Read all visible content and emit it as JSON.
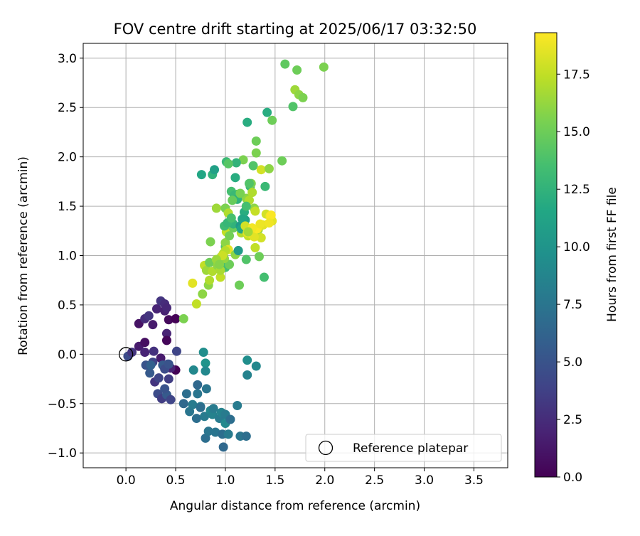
{
  "chart_data": {
    "type": "scatter",
    "title": "FOV centre drift starting at 2025/06/17 03:32:50",
    "xlabel": "Angular distance from reference (arcmin)",
    "ylabel": "Rotation from reference (arcmin)",
    "xlim": [
      -0.43,
      3.84
    ],
    "ylim": [
      -1.15,
      3.15
    ],
    "xticks": [
      0.0,
      0.5,
      1.0,
      1.5,
      2.0,
      2.5,
      3.0,
      3.5
    ],
    "yticks": [
      -1.0,
      -0.5,
      0.0,
      0.5,
      1.0,
      1.5,
      2.0,
      2.5,
      3.0
    ],
    "xtick_labels": [
      "0.0",
      "0.5",
      "1.0",
      "1.5",
      "2.0",
      "2.5",
      "3.0",
      "3.5"
    ],
    "ytick_labels": [
      "−1.0",
      "−0.5",
      "0.0",
      "0.5",
      "1.0",
      "1.5",
      "2.0",
      "2.5",
      "3.0"
    ],
    "grid": true,
    "legend": {
      "position": "lower-right",
      "entries": [
        "Reference platepar"
      ]
    },
    "colorbar": {
      "label": "Hours from first FF file",
      "colormap": "viridis",
      "range": [
        0.0,
        19.3
      ],
      "ticks": [
        0.0,
        2.5,
        5.0,
        7.5,
        10.0,
        12.5,
        15.0,
        17.5
      ],
      "tick_labels": [
        "0.0",
        "2.5",
        "5.0",
        "7.5",
        "10.0",
        "12.5",
        "15.0",
        "17.5"
      ]
    },
    "reference_point": {
      "x": 0.0,
      "y": 0.0,
      "label": "Reference platepar"
    },
    "points": [
      {
        "x": 0.02,
        "y": -0.02,
        "c": 4.5
      },
      {
        "x": 0.06,
        "y": 0.02,
        "c": 3.0
      },
      {
        "x": 0.13,
        "y": 0.08,
        "c": 1.5
      },
      {
        "x": 0.19,
        "y": 0.02,
        "c": 2.0
      },
      {
        "x": 0.19,
        "y": 0.12,
        "c": 0.8
      },
      {
        "x": 0.13,
        "y": 0.31,
        "c": 1.0
      },
      {
        "x": 0.19,
        "y": 0.36,
        "c": 2.5
      },
      {
        "x": 0.23,
        "y": 0.39,
        "c": 3.0
      },
      {
        "x": 0.27,
        "y": 0.3,
        "c": 1.5
      },
      {
        "x": 0.31,
        "y": 0.46,
        "c": 2.0
      },
      {
        "x": 0.35,
        "y": 0.54,
        "c": 3.0
      },
      {
        "x": 0.39,
        "y": 0.51,
        "c": 2.5
      },
      {
        "x": 0.39,
        "y": 0.44,
        "c": 1.8
      },
      {
        "x": 0.41,
        "y": 0.47,
        "c": 2.2
      },
      {
        "x": 0.43,
        "y": 0.35,
        "c": 0.5
      },
      {
        "x": 0.41,
        "y": 0.21,
        "c": 2.0
      },
      {
        "x": 0.41,
        "y": 0.14,
        "c": 0.3
      },
      {
        "x": 0.5,
        "y": 0.36,
        "c": 0.1
      },
      {
        "x": 0.58,
        "y": 0.36,
        "c": 15.5
      },
      {
        "x": 0.51,
        "y": 0.03,
        "c": 4.0
      },
      {
        "x": 0.5,
        "y": -0.16,
        "c": 0.1
      },
      {
        "x": 0.45,
        "y": -0.14,
        "c": 2.0
      },
      {
        "x": 0.42,
        "y": -0.1,
        "c": 4.5
      },
      {
        "x": 0.35,
        "y": -0.04,
        "c": 1.5
      },
      {
        "x": 0.28,
        "y": 0.03,
        "c": 2.8
      },
      {
        "x": 0.2,
        "y": -0.11,
        "c": 5.0
      },
      {
        "x": 0.24,
        "y": -0.19,
        "c": 5.5
      },
      {
        "x": 0.29,
        "y": -0.28,
        "c": 3.0
      },
      {
        "x": 0.33,
        "y": -0.24,
        "c": 4.0
      },
      {
        "x": 0.32,
        "y": -0.4,
        "c": 4.5
      },
      {
        "x": 0.36,
        "y": -0.45,
        "c": 3.5
      },
      {
        "x": 0.41,
        "y": -0.41,
        "c": 5.5
      },
      {
        "x": 0.45,
        "y": -0.46,
        "c": 4.0
      },
      {
        "x": 0.39,
        "y": -0.35,
        "c": 5.0
      },
      {
        "x": 0.37,
        "y": -0.11,
        "c": 5.5
      },
      {
        "x": 0.27,
        "y": -0.08,
        "c": 4.0
      },
      {
        "x": 0.25,
        "y": -0.11,
        "c": 6.0
      },
      {
        "x": 0.39,
        "y": -0.15,
        "c": 4.5
      },
      {
        "x": 0.43,
        "y": -0.1,
        "c": 5.0
      },
      {
        "x": 0.43,
        "y": -0.25,
        "c": 3.5
      },
      {
        "x": 0.58,
        "y": -0.5,
        "c": 6.5
      },
      {
        "x": 0.61,
        "y": -0.4,
        "c": 7.0
      },
      {
        "x": 0.64,
        "y": -0.58,
        "c": 7.5
      },
      {
        "x": 0.67,
        "y": -0.51,
        "c": 8.0
      },
      {
        "x": 0.68,
        "y": -0.16,
        "c": 9.0
      },
      {
        "x": 0.71,
        "y": -0.65,
        "c": 7.0
      },
      {
        "x": 0.72,
        "y": -0.4,
        "c": 7.5
      },
      {
        "x": 0.72,
        "y": -0.31,
        "c": 6.5
      },
      {
        "x": 0.75,
        "y": -0.53,
        "c": 8.0
      },
      {
        "x": 0.75,
        "y": -0.54,
        "c": 7.0
      },
      {
        "x": 0.78,
        "y": 0.02,
        "c": 9.5
      },
      {
        "x": 0.8,
        "y": -0.09,
        "c": 10.0
      },
      {
        "x": 0.8,
        "y": -0.17,
        "c": 9.0
      },
      {
        "x": 0.81,
        "y": -0.35,
        "c": 7.5
      },
      {
        "x": 0.79,
        "y": -0.63,
        "c": 8.0
      },
      {
        "x": 0.8,
        "y": -0.85,
        "c": 7.0
      },
      {
        "x": 0.83,
        "y": -0.78,
        "c": 7.5
      },
      {
        "x": 0.85,
        "y": -0.57,
        "c": 9.0
      },
      {
        "x": 0.87,
        "y": -0.61,
        "c": 8.5
      },
      {
        "x": 0.88,
        "y": -0.55,
        "c": 8.0
      },
      {
        "x": 0.9,
        "y": -0.79,
        "c": 7.5
      },
      {
        "x": 0.94,
        "y": -0.65,
        "c": 8.0
      },
      {
        "x": 0.96,
        "y": -0.59,
        "c": 8.5
      },
      {
        "x": 0.97,
        "y": -0.81,
        "c": 7.0
      },
      {
        "x": 0.98,
        "y": -0.94,
        "c": 6.5
      },
      {
        "x": 1.0,
        "y": -0.61,
        "c": 8.0
      },
      {
        "x": 1.0,
        "y": -0.7,
        "c": 9.0
      },
      {
        "x": 1.03,
        "y": -0.81,
        "c": 8.0
      },
      {
        "x": 1.05,
        "y": -0.66,
        "c": 7.0
      },
      {
        "x": 1.12,
        "y": -0.52,
        "c": 8.0
      },
      {
        "x": 1.15,
        "y": -0.83,
        "c": 7.5
      },
      {
        "x": 1.21,
        "y": -0.83,
        "c": 7.0
      },
      {
        "x": 1.22,
        "y": -0.21,
        "c": 8.5
      },
      {
        "x": 1.22,
        "y": -0.06,
        "c": 9.5
      },
      {
        "x": 1.31,
        "y": -0.12,
        "c": 9.0
      },
      {
        "x": 0.67,
        "y": 0.72,
        "c": 18.5
      },
      {
        "x": 0.71,
        "y": 0.51,
        "c": 17.5
      },
      {
        "x": 0.77,
        "y": 0.61,
        "c": 16.0
      },
      {
        "x": 0.79,
        "y": 0.9,
        "c": 17.5
      },
      {
        "x": 0.81,
        "y": 0.85,
        "c": 16.5
      },
      {
        "x": 0.83,
        "y": 0.7,
        "c": 16.0
      },
      {
        "x": 0.84,
        "y": 0.75,
        "c": 17.0
      },
      {
        "x": 0.84,
        "y": 0.93,
        "c": 15.0
      },
      {
        "x": 0.87,
        "y": 0.84,
        "c": 17.0
      },
      {
        "x": 0.85,
        "y": 1.14,
        "c": 15.5
      },
      {
        "x": 0.91,
        "y": 1.48,
        "c": 16.5
      },
      {
        "x": 0.92,
        "y": 0.9,
        "c": 16.0
      },
      {
        "x": 0.95,
        "y": 0.78,
        "c": 17.5
      },
      {
        "x": 0.96,
        "y": 0.99,
        "c": 16.0
      },
      {
        "x": 0.98,
        "y": 1.02,
        "c": 17.0
      },
      {
        "x": 1.0,
        "y": 1.09,
        "c": 14.0
      },
      {
        "x": 1.0,
        "y": 1.13,
        "c": 16.0
      },
      {
        "x": 1.01,
        "y": 1.24,
        "c": 17.5
      },
      {
        "x": 1.01,
        "y": 1.31,
        "c": 15.0
      },
      {
        "x": 1.0,
        "y": 1.48,
        "c": 15.5
      },
      {
        "x": 1.03,
        "y": 1.43,
        "c": 17.0
      },
      {
        "x": 1.03,
        "y": 1.06,
        "c": 18.5
      },
      {
        "x": 1.0,
        "y": 0.88,
        "c": 13.5
      },
      {
        "x": 1.04,
        "y": 0.91,
        "c": 15.0
      },
      {
        "x": 1.06,
        "y": 1.65,
        "c": 13.5
      },
      {
        "x": 1.08,
        "y": 1.28,
        "c": 15.0
      },
      {
        "x": 1.08,
        "y": 1.32,
        "c": 12.5
      },
      {
        "x": 1.1,
        "y": 1.79,
        "c": 12.0
      },
      {
        "x": 1.1,
        "y": 1.01,
        "c": 16.0
      },
      {
        "x": 1.12,
        "y": 1.62,
        "c": 14.0
      },
      {
        "x": 1.13,
        "y": 1.05,
        "c": 15.5
      },
      {
        "x": 1.14,
        "y": 0.7,
        "c": 15.0
      },
      {
        "x": 1.16,
        "y": 1.23,
        "c": 17.0
      },
      {
        "x": 1.18,
        "y": 1.37,
        "c": 14.5
      },
      {
        "x": 1.18,
        "y": 1.97,
        "c": 15.5
      },
      {
        "x": 1.21,
        "y": 0.96,
        "c": 14.0
      },
      {
        "x": 1.21,
        "y": 1.58,
        "c": 16.0
      },
      {
        "x": 1.22,
        "y": 2.35,
        "c": 12.0
      },
      {
        "x": 1.23,
        "y": 1.2,
        "c": 17.5
      },
      {
        "x": 1.24,
        "y": 1.56,
        "c": 17.0
      },
      {
        "x": 1.25,
        "y": 1.7,
        "c": 13.0
      },
      {
        "x": 1.26,
        "y": 1.73,
        "c": 15.5
      },
      {
        "x": 1.27,
        "y": 1.64,
        "c": 17.0
      },
      {
        "x": 1.28,
        "y": 1.91,
        "c": 14.0
      },
      {
        "x": 1.29,
        "y": 1.48,
        "c": 16.0
      },
      {
        "x": 1.3,
        "y": 1.08,
        "c": 17.5
      },
      {
        "x": 1.31,
        "y": 2.16,
        "c": 15.0
      },
      {
        "x": 1.31,
        "y": 2.04,
        "c": 15.5
      },
      {
        "x": 1.33,
        "y": 1.26,
        "c": 16.5
      },
      {
        "x": 1.34,
        "y": 0.99,
        "c": 15.0
      },
      {
        "x": 1.36,
        "y": 1.18,
        "c": 18.0
      },
      {
        "x": 1.36,
        "y": 1.87,
        "c": 18.0
      },
      {
        "x": 1.38,
        "y": 1.31,
        "c": 18.5
      },
      {
        "x": 1.39,
        "y": 0.78,
        "c": 13.5
      },
      {
        "x": 1.4,
        "y": 1.7,
        "c": 13.0
      },
      {
        "x": 1.41,
        "y": 1.42,
        "c": 18.0
      },
      {
        "x": 1.42,
        "y": 2.45,
        "c": 12.0
      },
      {
        "x": 1.44,
        "y": 1.88,
        "c": 16.0
      },
      {
        "x": 1.45,
        "y": 1.4,
        "c": 19.0
      },
      {
        "x": 1.47,
        "y": 1.35,
        "c": 18.5
      },
      {
        "x": 1.47,
        "y": 2.37,
        "c": 15.0
      },
      {
        "x": 1.57,
        "y": 1.96,
        "c": 15.0
      },
      {
        "x": 1.6,
        "y": 2.94,
        "c": 14.5
      },
      {
        "x": 1.68,
        "y": 2.51,
        "c": 14.0
      },
      {
        "x": 1.7,
        "y": 2.68,
        "c": 16.5
      },
      {
        "x": 1.72,
        "y": 2.88,
        "c": 15.0
      },
      {
        "x": 1.74,
        "y": 2.63,
        "c": 16.0
      },
      {
        "x": 1.78,
        "y": 2.6,
        "c": 15.5
      },
      {
        "x": 1.99,
        "y": 2.91,
        "c": 15.5
      },
      {
        "x": 1.15,
        "y": 1.3,
        "c": 10.5
      },
      {
        "x": 1.2,
        "y": 1.36,
        "c": 11.0
      },
      {
        "x": 1.19,
        "y": 1.44,
        "c": 12.0
      },
      {
        "x": 1.16,
        "y": 1.27,
        "c": 11.5
      },
      {
        "x": 1.11,
        "y": 1.94,
        "c": 12.5
      },
      {
        "x": 1.24,
        "y": 1.73,
        "c": 14.0
      },
      {
        "x": 1.13,
        "y": 1.05,
        "c": 10.5
      },
      {
        "x": 1.17,
        "y": 1.37,
        "c": 11.5
      },
      {
        "x": 1.09,
        "y": 1.61,
        "c": 13.0
      },
      {
        "x": 1.12,
        "y": 1.57,
        "c": 12.5
      },
      {
        "x": 1.21,
        "y": 1.5,
        "c": 13.5
      },
      {
        "x": 1.2,
        "y": 1.3,
        "c": 18.0
      },
      {
        "x": 1.22,
        "y": 1.23,
        "c": 18.5
      },
      {
        "x": 1.26,
        "y": 1.22,
        "c": 19.0
      },
      {
        "x": 1.29,
        "y": 1.19,
        "c": 18.5
      },
      {
        "x": 1.32,
        "y": 1.27,
        "c": 19.2
      },
      {
        "x": 1.35,
        "y": 1.32,
        "c": 18.8
      },
      {
        "x": 1.46,
        "y": 1.41,
        "c": 19.2
      },
      {
        "x": 1.44,
        "y": 1.33,
        "c": 18.9
      },
      {
        "x": 1.27,
        "y": 1.28,
        "c": 19.0
      },
      {
        "x": 1.0,
        "y": 1.05,
        "c": 17.2
      },
      {
        "x": 0.95,
        "y": 0.85,
        "c": 16.8
      },
      {
        "x": 0.99,
        "y": 0.97,
        "c": 16.2
      },
      {
        "x": 0.97,
        "y": 1.0,
        "c": 17.8
      },
      {
        "x": 0.91,
        "y": 0.96,
        "c": 16.4
      },
      {
        "x": 0.94,
        "y": 0.91,
        "c": 15.8
      },
      {
        "x": 0.99,
        "y": 1.3,
        "c": 13.2
      },
      {
        "x": 1.02,
        "y": 1.33,
        "c": 12.8
      },
      {
        "x": 1.06,
        "y": 1.38,
        "c": 13.6
      },
      {
        "x": 1.04,
        "y": 1.2,
        "c": 15.2
      },
      {
        "x": 0.87,
        "y": 1.82,
        "c": 12.4
      },
      {
        "x": 0.76,
        "y": 1.82,
        "c": 11.5
      },
      {
        "x": 0.89,
        "y": 1.87,
        "c": 11.0
      },
      {
        "x": 1.01,
        "y": 1.95,
        "c": 13.0
      },
      {
        "x": 1.03,
        "y": 1.93,
        "c": 14.2
      },
      {
        "x": 1.07,
        "y": 1.56,
        "c": 14.8
      },
      {
        "x": 1.15,
        "y": 1.63,
        "c": 15.4
      },
      {
        "x": 1.23,
        "y": 1.24,
        "c": 16.6
      },
      {
        "x": 1.3,
        "y": 1.45,
        "c": 17.6
      }
    ]
  }
}
